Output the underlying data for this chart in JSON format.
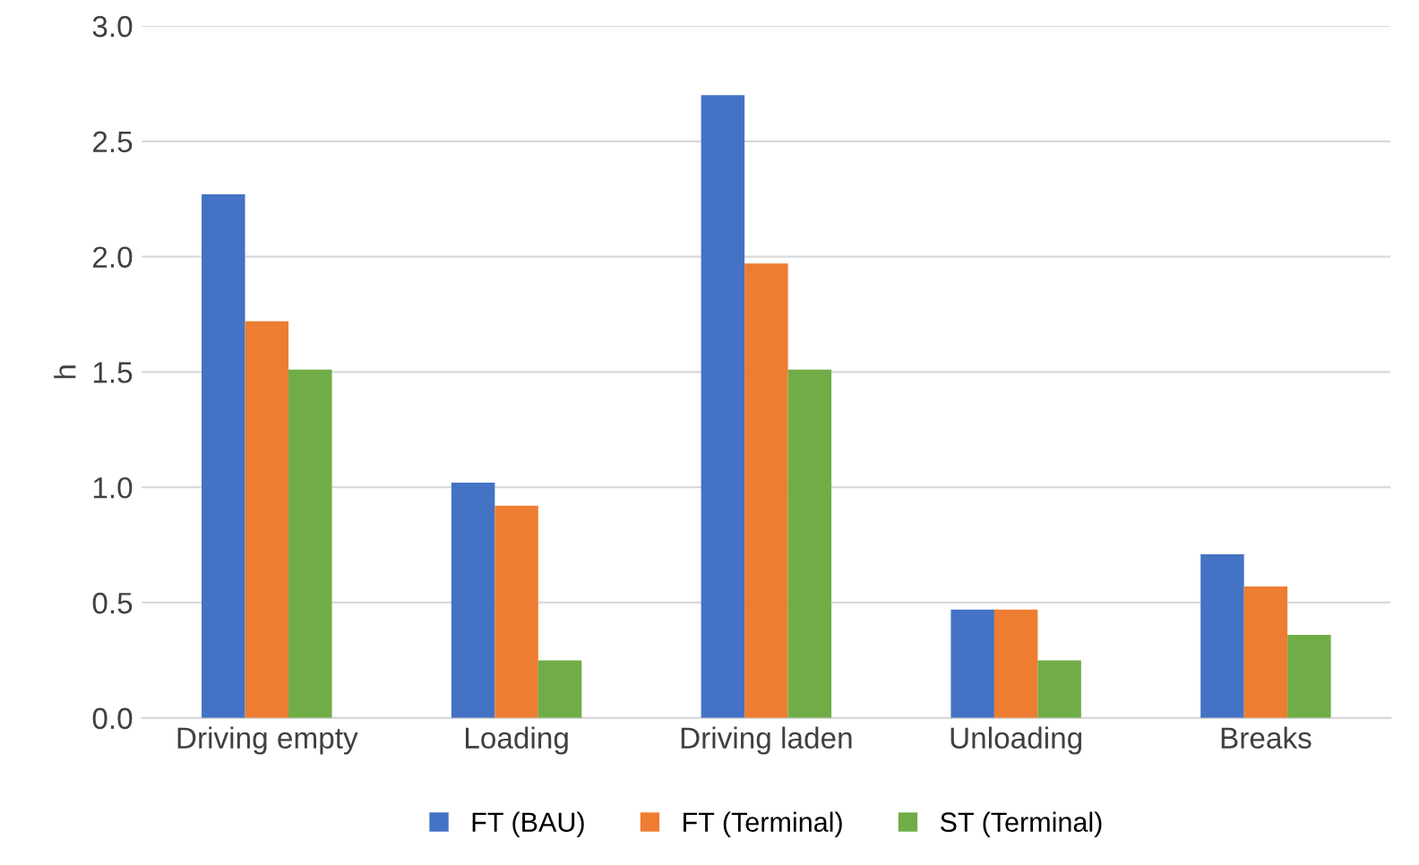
{
  "chart_data": {
    "type": "bar",
    "ylabel": "h",
    "categories": [
      "Driving empty",
      "Loading",
      "Driving laden",
      "Unloading",
      "Breaks"
    ],
    "series": [
      {
        "name": "FT (BAU)",
        "color": "#4472c4",
        "values": [
          2.27,
          1.02,
          2.7,
          0.47,
          0.71
        ]
      },
      {
        "name": "FT (Terminal)",
        "color": "#ed7d31",
        "values": [
          1.72,
          0.92,
          1.97,
          0.47,
          0.57
        ]
      },
      {
        "name": "ST (Terminal)",
        "color": "#70ad47",
        "values": [
          1.51,
          0.25,
          1.51,
          0.25,
          0.36
        ]
      }
    ],
    "ylim": [
      0,
      3.0
    ],
    "yticks": [
      {
        "value": 0,
        "label": "0.0"
      },
      {
        "value": 0.5,
        "label": "0.5"
      },
      {
        "value": 1.0,
        "label": "1.0"
      },
      {
        "value": 1.5,
        "label": "1.5"
      },
      {
        "value": 2.0,
        "label": "2.0"
      },
      {
        "value": 2.5,
        "label": "2.5"
      },
      {
        "value": 3.0,
        "label": "3.0"
      }
    ],
    "grid": "y",
    "legend": "bottom"
  }
}
